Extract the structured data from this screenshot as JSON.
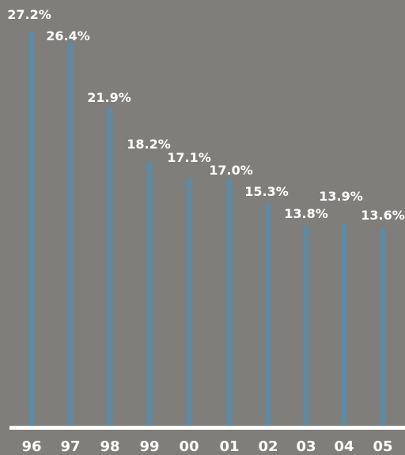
{
  "colors": {
    "background": "#7f7e7b",
    "bar": "#5f8aa3",
    "axis": "#ffffff",
    "text": "#ffffff"
  },
  "chart_data": {
    "type": "bar",
    "title": "",
    "xlabel": "",
    "ylabel": "",
    "categories": [
      "96",
      "97",
      "98",
      "99",
      "00",
      "01",
      "02",
      "03",
      "04",
      "05"
    ],
    "values": [
      27.2,
      26.4,
      21.9,
      18.2,
      17.1,
      17.0,
      15.3,
      13.8,
      13.9,
      13.6
    ],
    "data_labels": [
      "27.2%",
      "26.4%",
      "21.9%",
      "18.2%",
      "17.1%",
      "17.0%",
      "15.3%",
      "13.8%",
      "13.9%",
      "13.6%"
    ],
    "ylim": [
      0,
      27.2
    ],
    "grid": false,
    "legend": "none"
  }
}
